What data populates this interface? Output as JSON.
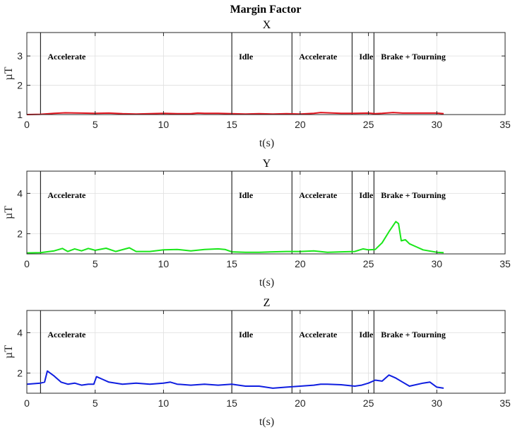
{
  "figure_title": "Margin Factor",
  "chart_data": [
    {
      "type": "line",
      "title": "X",
      "xlabel": "t(s)",
      "ylabel": "µT",
      "xlim": [
        0,
        35
      ],
      "ylim": [
        1,
        3.8
      ],
      "xticks": [
        0,
        5,
        10,
        15,
        20,
        25,
        30,
        35
      ],
      "yticks": [
        1,
        2,
        3
      ],
      "grid": true,
      "color": "#e0141e",
      "boundaries": [
        1.0,
        15.0,
        19.4,
        23.8,
        25.4
      ],
      "regions": [
        {
          "label": "Accelerate",
          "x": 1.0
        },
        {
          "label": "Idle",
          "x": 15.0
        },
        {
          "label": "Accelerate",
          "x": 19.4
        },
        {
          "label": "Idle",
          "x": 23.8
        },
        {
          "label": "Brake + Tourning",
          "x": 25.4
        }
      ],
      "series": [
        {
          "x": [
            0,
            1,
            2,
            2.8,
            4,
            5,
            6,
            7,
            8,
            9,
            10,
            11,
            12,
            12.5,
            13,
            14,
            15,
            16,
            17,
            18,
            19,
            20,
            21,
            21.5,
            22.5,
            23,
            24,
            25,
            25.5,
            26,
            26.8,
            27.5,
            28,
            29,
            30,
            30.5
          ],
          "y": [
            1.0,
            1.01,
            1.04,
            1.06,
            1.05,
            1.04,
            1.05,
            1.03,
            1.02,
            1.03,
            1.04,
            1.03,
            1.03,
            1.05,
            1.04,
            1.04,
            1.03,
            1.02,
            1.03,
            1.02,
            1.03,
            1.02,
            1.04,
            1.07,
            1.05,
            1.04,
            1.04,
            1.05,
            1.03,
            1.04,
            1.07,
            1.05,
            1.05,
            1.05,
            1.05,
            1.03
          ]
        }
      ]
    },
    {
      "type": "line",
      "title": "Y",
      "xlabel": "t(s)",
      "ylabel": "µT",
      "xlim": [
        0,
        35
      ],
      "ylim": [
        1,
        5.1
      ],
      "xticks": [
        0,
        5,
        10,
        15,
        20,
        25,
        30,
        35
      ],
      "yticks": [
        2,
        4
      ],
      "grid": true,
      "color": "#19e619",
      "boundaries": [
        1.0,
        15.0,
        19.4,
        23.8,
        25.4
      ],
      "regions": [
        {
          "label": "Accelerate",
          "x": 1.0
        },
        {
          "label": "Idle",
          "x": 15.0
        },
        {
          "label": "Accelerate",
          "x": 19.4
        },
        {
          "label": "Idle",
          "x": 23.8
        },
        {
          "label": "Brake + Tourning",
          "x": 25.4
        }
      ],
      "series": [
        {
          "x": [
            0,
            1,
            2,
            2.6,
            3,
            3.5,
            4,
            4.5,
            5,
            5.8,
            6.5,
            7.5,
            8,
            9,
            10,
            11,
            12,
            13,
            14,
            14.5,
            15,
            16,
            17,
            18,
            19,
            20,
            21,
            22,
            23,
            24,
            24.6,
            25,
            25.5,
            26,
            26.5,
            27,
            27.2,
            27.4,
            27.7,
            28,
            28.5,
            29,
            30,
            30.5
          ],
          "y": [
            1.05,
            1.06,
            1.15,
            1.27,
            1.12,
            1.25,
            1.15,
            1.27,
            1.18,
            1.28,
            1.12,
            1.3,
            1.12,
            1.12,
            1.2,
            1.22,
            1.15,
            1.22,
            1.25,
            1.22,
            1.1,
            1.08,
            1.08,
            1.1,
            1.12,
            1.12,
            1.15,
            1.08,
            1.1,
            1.12,
            1.25,
            1.2,
            1.22,
            1.55,
            2.1,
            2.6,
            2.5,
            1.65,
            1.7,
            1.5,
            1.35,
            1.2,
            1.08,
            1.06
          ]
        }
      ]
    },
    {
      "type": "line",
      "title": "Z",
      "xlabel": "t(s)",
      "ylabel": "µT",
      "xlim": [
        0,
        35
      ],
      "ylim": [
        1,
        5.1
      ],
      "xticks": [
        0,
        5,
        10,
        15,
        20,
        25,
        30,
        35
      ],
      "yticks": [
        2,
        4
      ],
      "grid": true,
      "color": "#0f1ee0",
      "boundaries": [
        1.0,
        15.0,
        19.4,
        23.8,
        25.4
      ],
      "regions": [
        {
          "label": "Accelerate",
          "x": 1.0
        },
        {
          "label": "Idle",
          "x": 15.0
        },
        {
          "label": "Accelerate",
          "x": 19.4
        },
        {
          "label": "Idle",
          "x": 23.8
        },
        {
          "label": "Brake + Tourning",
          "x": 25.4
        }
      ],
      "series": [
        {
          "x": [
            0,
            1,
            1.3,
            1.5,
            2,
            2.5,
            3,
            3.5,
            4,
            4.5,
            4.9,
            5.1,
            5.5,
            6,
            7,
            8,
            9,
            10,
            10.5,
            11,
            12,
            13,
            14,
            15,
            16,
            17,
            18,
            19,
            20,
            21,
            21.5,
            22,
            23,
            24,
            24.5,
            25,
            25.5,
            26,
            26.5,
            27,
            27.5,
            28,
            29,
            29.5,
            30,
            30.5
          ],
          "y": [
            1.45,
            1.5,
            1.55,
            2.1,
            1.85,
            1.55,
            1.45,
            1.5,
            1.4,
            1.45,
            1.45,
            1.82,
            1.7,
            1.55,
            1.45,
            1.5,
            1.45,
            1.5,
            1.55,
            1.45,
            1.4,
            1.45,
            1.4,
            1.45,
            1.35,
            1.35,
            1.25,
            1.3,
            1.35,
            1.4,
            1.45,
            1.45,
            1.42,
            1.35,
            1.4,
            1.5,
            1.65,
            1.6,
            1.9,
            1.75,
            1.55,
            1.35,
            1.5,
            1.55,
            1.3,
            1.25
          ]
        }
      ]
    }
  ]
}
